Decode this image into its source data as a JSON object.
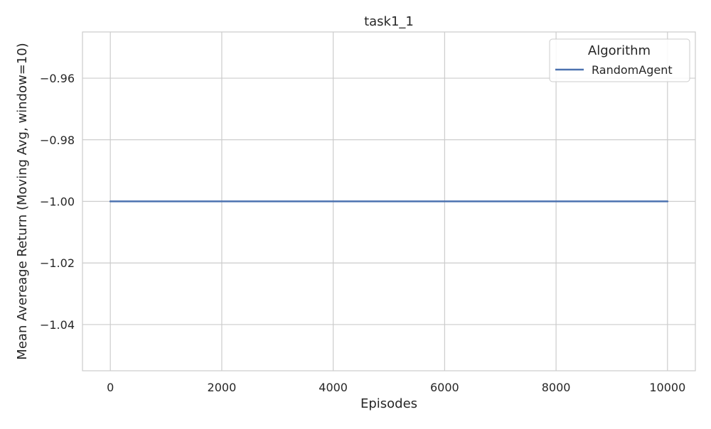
{
  "chart_data": {
    "type": "line",
    "title": "task1_1",
    "xlabel": "Episodes",
    "ylabel": "Mean Avereage Return (Moving Avg, window=10)",
    "xlim": [
      -500,
      10500
    ],
    "ylim": [
      -1.055,
      -0.945
    ],
    "x_ticks": [
      0,
      2000,
      4000,
      6000,
      8000,
      10000
    ],
    "x_tick_labels": [
      "0",
      "2000",
      "4000",
      "6000",
      "8000",
      "10000"
    ],
    "y_ticks": [
      -0.96,
      -0.98,
      -1.0,
      -1.02,
      -1.04
    ],
    "y_tick_labels": [
      "−0.96",
      "−0.98",
      "−1.00",
      "−1.02",
      "−1.04"
    ],
    "grid": true,
    "legend": {
      "title": "Algorithm",
      "placement": "top-right",
      "entries": [
        {
          "name": "RandomAgent",
          "color": "#4c72b0"
        }
      ]
    },
    "series": [
      {
        "name": "RandomAgent",
        "color": "#4c72b0",
        "x": [
          0,
          10000
        ],
        "y": [
          -1.0,
          -1.0
        ]
      }
    ]
  }
}
